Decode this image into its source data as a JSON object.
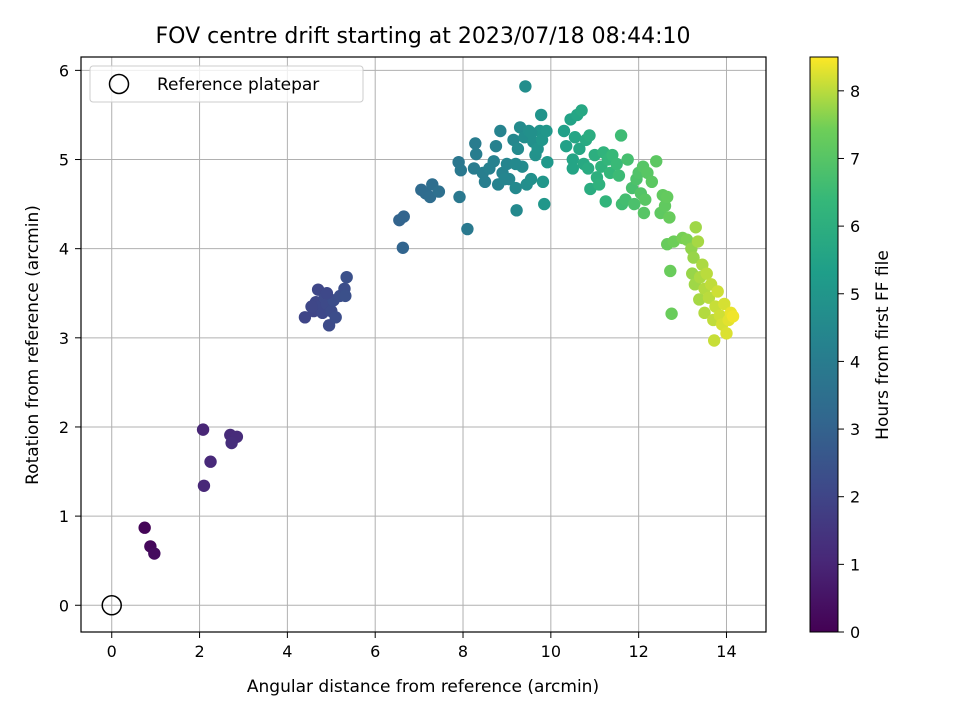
{
  "chart_data": {
    "type": "scatter",
    "title": "FOV centre drift starting at 2023/07/18 08:44:10",
    "xlabel": "Angular distance from reference (arcmin)",
    "ylabel": "Rotation from reference (arcmin)",
    "xlim": [
      -0.7,
      14.9
    ],
    "ylim": [
      -0.3,
      6.15
    ],
    "xticks": [
      "0",
      "2",
      "4",
      "6",
      "8",
      "10",
      "12",
      "14"
    ],
    "yticks": [
      "0",
      "1",
      "2",
      "3",
      "4",
      "5",
      "6"
    ],
    "grid": true,
    "legend": {
      "position": "top-left",
      "entries": [
        "Reference platepar"
      ]
    },
    "reference_point": {
      "x": 0,
      "y": 0
    },
    "colorbar": {
      "label": "Hours from first FF file",
      "range": [
        0,
        8.5
      ],
      "ticks": [
        "0",
        "1",
        "2",
        "3",
        "4",
        "5",
        "6",
        "7",
        "8"
      ],
      "colormap": "viridis"
    },
    "points": [
      {
        "x": 0.75,
        "y": 0.87,
        "t": 0.1
      },
      {
        "x": 0.88,
        "y": 0.66,
        "t": 0.2
      },
      {
        "x": 0.97,
        "y": 0.58,
        "t": 0.3
      },
      {
        "x": 2.08,
        "y": 1.97,
        "t": 1.0
      },
      {
        "x": 2.1,
        "y": 1.34,
        "t": 1.05
      },
      {
        "x": 2.25,
        "y": 1.61,
        "t": 1.1
      },
      {
        "x": 2.7,
        "y": 1.91,
        "t": 1.15
      },
      {
        "x": 2.85,
        "y": 1.89,
        "t": 1.2
      },
      {
        "x": 2.73,
        "y": 1.82,
        "t": 1.25
      },
      {
        "x": 4.4,
        "y": 3.23,
        "t": 2.0
      },
      {
        "x": 4.6,
        "y": 3.3,
        "t": 2.0
      },
      {
        "x": 4.65,
        "y": 3.4,
        "t": 2.05
      },
      {
        "x": 4.7,
        "y": 3.54,
        "t": 2.05
      },
      {
        "x": 4.75,
        "y": 3.35,
        "t": 2.1
      },
      {
        "x": 4.8,
        "y": 3.28,
        "t": 2.1
      },
      {
        "x": 4.85,
        "y": 3.45,
        "t": 2.15
      },
      {
        "x": 4.9,
        "y": 3.38,
        "t": 2.15
      },
      {
        "x": 4.95,
        "y": 3.14,
        "t": 2.2
      },
      {
        "x": 5.0,
        "y": 3.3,
        "t": 2.2
      },
      {
        "x": 5.05,
        "y": 3.42,
        "t": 2.25
      },
      {
        "x": 5.1,
        "y": 3.23,
        "t": 2.25
      },
      {
        "x": 5.2,
        "y": 3.47,
        "t": 2.3
      },
      {
        "x": 5.3,
        "y": 3.55,
        "t": 2.3
      },
      {
        "x": 5.32,
        "y": 3.47,
        "t": 2.35
      },
      {
        "x": 5.35,
        "y": 3.68,
        "t": 2.35
      },
      {
        "x": 4.55,
        "y": 3.35,
        "t": 2.05
      },
      {
        "x": 4.9,
        "y": 3.5,
        "t": 2.1
      },
      {
        "x": 6.55,
        "y": 4.32,
        "t": 3.05
      },
      {
        "x": 6.65,
        "y": 4.36,
        "t": 3.1
      },
      {
        "x": 6.63,
        "y": 4.01,
        "t": 3.1
      },
      {
        "x": 7.05,
        "y": 4.66,
        "t": 3.3
      },
      {
        "x": 7.15,
        "y": 4.62,
        "t": 3.35
      },
      {
        "x": 7.25,
        "y": 4.58,
        "t": 3.4
      },
      {
        "x": 7.3,
        "y": 4.72,
        "t": 3.45
      },
      {
        "x": 7.45,
        "y": 4.64,
        "t": 3.5
      },
      {
        "x": 7.9,
        "y": 4.97,
        "t": 3.8
      },
      {
        "x": 7.92,
        "y": 4.58,
        "t": 3.85
      },
      {
        "x": 7.95,
        "y": 4.88,
        "t": 3.85
      },
      {
        "x": 8.1,
        "y": 4.22,
        "t": 3.9
      },
      {
        "x": 8.25,
        "y": 4.9,
        "t": 4.0
      },
      {
        "x": 8.28,
        "y": 5.18,
        "t": 4.0
      },
      {
        "x": 8.3,
        "y": 5.06,
        "t": 4.05
      },
      {
        "x": 8.45,
        "y": 4.85,
        "t": 4.1
      },
      {
        "x": 8.5,
        "y": 4.75,
        "t": 4.1
      },
      {
        "x": 8.6,
        "y": 4.9,
        "t": 4.15
      },
      {
        "x": 8.7,
        "y": 4.98,
        "t": 4.2
      },
      {
        "x": 8.75,
        "y": 5.15,
        "t": 4.2
      },
      {
        "x": 8.8,
        "y": 4.72,
        "t": 4.25
      },
      {
        "x": 8.85,
        "y": 5.32,
        "t": 4.3
      },
      {
        "x": 8.9,
        "y": 4.85,
        "t": 4.3
      },
      {
        "x": 9.0,
        "y": 4.95,
        "t": 4.35
      },
      {
        "x": 9.05,
        "y": 4.78,
        "t": 4.4
      },
      {
        "x": 9.15,
        "y": 5.22,
        "t": 4.45
      },
      {
        "x": 9.2,
        "y": 4.68,
        "t": 4.5
      },
      {
        "x": 9.22,
        "y": 4.43,
        "t": 4.5
      },
      {
        "x": 9.25,
        "y": 5.12,
        "t": 4.55
      },
      {
        "x": 9.3,
        "y": 5.36,
        "t": 4.6
      },
      {
        "x": 9.35,
        "y": 4.92,
        "t": 4.6
      },
      {
        "x": 9.4,
        "y": 5.25,
        "t": 4.65
      },
      {
        "x": 9.42,
        "y": 5.82,
        "t": 4.7
      },
      {
        "x": 9.45,
        "y": 4.72,
        "t": 4.7
      },
      {
        "x": 9.5,
        "y": 5.32,
        "t": 4.75
      },
      {
        "x": 9.55,
        "y": 4.78,
        "t": 4.8
      },
      {
        "x": 9.6,
        "y": 5.2,
        "t": 4.8
      },
      {
        "x": 9.65,
        "y": 5.05,
        "t": 4.85
      },
      {
        "x": 9.7,
        "y": 5.12,
        "t": 4.9
      },
      {
        "x": 9.75,
        "y": 5.32,
        "t": 4.95
      },
      {
        "x": 9.78,
        "y": 5.5,
        "t": 4.95
      },
      {
        "x": 9.8,
        "y": 5.22,
        "t": 5.0
      },
      {
        "x": 9.82,
        "y": 4.75,
        "t": 5.0
      },
      {
        "x": 9.85,
        "y": 4.5,
        "t": 5.05
      },
      {
        "x": 9.9,
        "y": 5.32,
        "t": 5.05
      },
      {
        "x": 9.92,
        "y": 4.97,
        "t": 5.1
      },
      {
        "x": 9.2,
        "y": 4.95,
        "t": 4.5
      },
      {
        "x": 8.95,
        "y": 4.78,
        "t": 4.35
      },
      {
        "x": 9.55,
        "y": 5.3,
        "t": 4.8
      },
      {
        "x": 10.3,
        "y": 5.32,
        "t": 5.4
      },
      {
        "x": 10.35,
        "y": 5.15,
        "t": 5.45
      },
      {
        "x": 10.45,
        "y": 5.45,
        "t": 5.5
      },
      {
        "x": 10.5,
        "y": 5.0,
        "t": 5.55
      },
      {
        "x": 10.55,
        "y": 5.25,
        "t": 5.6
      },
      {
        "x": 10.6,
        "y": 5.5,
        "t": 5.6
      },
      {
        "x": 10.65,
        "y": 5.12,
        "t": 5.65
      },
      {
        "x": 10.7,
        "y": 5.55,
        "t": 5.7
      },
      {
        "x": 10.75,
        "y": 4.95,
        "t": 5.75
      },
      {
        "x": 10.8,
        "y": 5.22,
        "t": 5.8
      },
      {
        "x": 10.85,
        "y": 4.9,
        "t": 5.85
      },
      {
        "x": 10.88,
        "y": 5.27,
        "t": 5.9
      },
      {
        "x": 10.5,
        "y": 4.9,
        "t": 5.55
      },
      {
        "x": 10.9,
        "y": 4.67,
        "t": 5.9
      },
      {
        "x": 11.0,
        "y": 5.05,
        "t": 6.0
      },
      {
        "x": 11.05,
        "y": 4.8,
        "t": 6.05
      },
      {
        "x": 11.1,
        "y": 4.72,
        "t": 6.1
      },
      {
        "x": 11.15,
        "y": 4.92,
        "t": 6.15
      },
      {
        "x": 11.2,
        "y": 5.08,
        "t": 6.2
      },
      {
        "x": 11.25,
        "y": 4.53,
        "t": 6.25
      },
      {
        "x": 11.3,
        "y": 5.0,
        "t": 6.3
      },
      {
        "x": 11.35,
        "y": 4.85,
        "t": 6.35
      },
      {
        "x": 11.4,
        "y": 5.05,
        "t": 6.4
      },
      {
        "x": 11.5,
        "y": 4.95,
        "t": 6.45
      },
      {
        "x": 11.55,
        "y": 4.82,
        "t": 6.5
      },
      {
        "x": 11.6,
        "y": 5.27,
        "t": 6.55
      },
      {
        "x": 11.62,
        "y": 4.5,
        "t": 6.6
      },
      {
        "x": 11.7,
        "y": 4.55,
        "t": 6.65
      },
      {
        "x": 11.75,
        "y": 5.0,
        "t": 6.7
      },
      {
        "x": 11.85,
        "y": 4.68,
        "t": 6.75
      },
      {
        "x": 11.9,
        "y": 4.5,
        "t": 6.8
      },
      {
        "x": 11.95,
        "y": 4.78,
        "t": 6.85
      },
      {
        "x": 12.0,
        "y": 4.85,
        "t": 6.9
      },
      {
        "x": 12.05,
        "y": 4.62,
        "t": 6.95
      },
      {
        "x": 12.1,
        "y": 4.92,
        "t": 7.0
      },
      {
        "x": 12.12,
        "y": 4.4,
        "t": 7.0
      },
      {
        "x": 12.15,
        "y": 4.55,
        "t": 7.05
      },
      {
        "x": 12.2,
        "y": 4.85,
        "t": 7.05
      },
      {
        "x": 12.3,
        "y": 4.75,
        "t": 7.1
      },
      {
        "x": 12.4,
        "y": 4.98,
        "t": 7.1
      },
      {
        "x": 12.5,
        "y": 4.4,
        "t": 7.15
      },
      {
        "x": 12.55,
        "y": 4.6,
        "t": 7.2
      },
      {
        "x": 12.6,
        "y": 4.48,
        "t": 7.2
      },
      {
        "x": 12.65,
        "y": 4.58,
        "t": 7.25
      },
      {
        "x": 12.65,
        "y": 4.05,
        "t": 7.3
      },
      {
        "x": 12.7,
        "y": 4.35,
        "t": 7.3
      },
      {
        "x": 12.72,
        "y": 3.75,
        "t": 7.35
      },
      {
        "x": 12.75,
        "y": 3.27,
        "t": 7.35
      },
      {
        "x": 12.8,
        "y": 4.08,
        "t": 7.4
      },
      {
        "x": 13.0,
        "y": 4.12,
        "t": 7.5
      },
      {
        "x": 13.1,
        "y": 4.1,
        "t": 7.55
      },
      {
        "x": 13.2,
        "y": 4.0,
        "t": 7.7
      },
      {
        "x": 13.22,
        "y": 3.72,
        "t": 7.75
      },
      {
        "x": 13.25,
        "y": 3.9,
        "t": 7.75
      },
      {
        "x": 13.28,
        "y": 3.6,
        "t": 7.8
      },
      {
        "x": 13.3,
        "y": 4.24,
        "t": 7.8
      },
      {
        "x": 13.35,
        "y": 4.08,
        "t": 7.85
      },
      {
        "x": 13.38,
        "y": 3.43,
        "t": 7.85
      },
      {
        "x": 13.4,
        "y": 3.68,
        "t": 7.9
      },
      {
        "x": 13.45,
        "y": 3.82,
        "t": 7.9
      },
      {
        "x": 13.5,
        "y": 3.55,
        "t": 7.95
      },
      {
        "x": 13.5,
        "y": 3.28,
        "t": 7.95
      },
      {
        "x": 13.55,
        "y": 3.72,
        "t": 8.0
      },
      {
        "x": 13.6,
        "y": 3.45,
        "t": 8.0
      },
      {
        "x": 13.65,
        "y": 3.6,
        "t": 8.05
      },
      {
        "x": 13.7,
        "y": 3.2,
        "t": 8.05
      },
      {
        "x": 13.72,
        "y": 2.97,
        "t": 8.1
      },
      {
        "x": 13.75,
        "y": 3.35,
        "t": 8.1
      },
      {
        "x": 13.8,
        "y": 3.52,
        "t": 8.15
      },
      {
        "x": 13.85,
        "y": 3.25,
        "t": 8.15
      },
      {
        "x": 13.9,
        "y": 3.15,
        "t": 8.2
      },
      {
        "x": 13.95,
        "y": 3.38,
        "t": 8.2
      },
      {
        "x": 14.0,
        "y": 3.05,
        "t": 8.25
      },
      {
        "x": 14.05,
        "y": 3.2,
        "t": 8.3
      },
      {
        "x": 14.1,
        "y": 3.28,
        "t": 8.35
      },
      {
        "x": 14.15,
        "y": 3.24,
        "t": 8.4
      }
    ]
  }
}
